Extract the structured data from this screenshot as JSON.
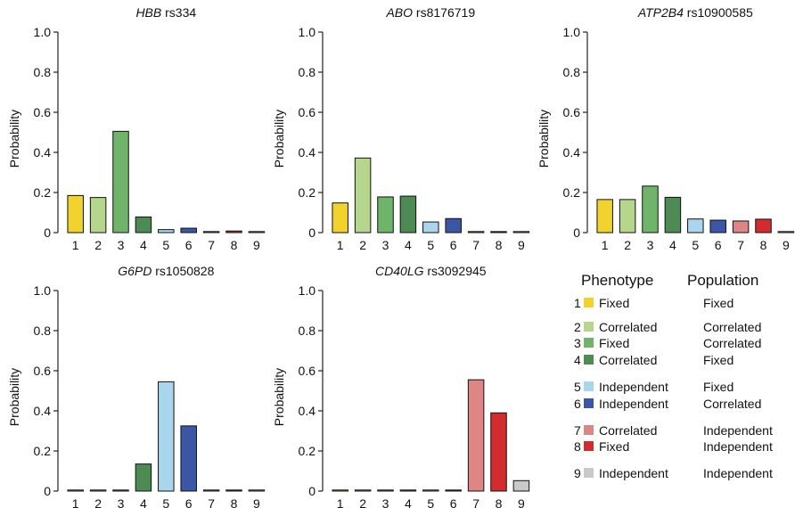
{
  "chart_data": [
    {
      "type": "bar",
      "title_gene": "HBB",
      "title_snp": "rs334",
      "ylabel": "Probability",
      "ylim": [
        0,
        1
      ],
      "yticks": [
        "0",
        "0.2",
        "0.4",
        "0.6",
        "0.8",
        "1.0"
      ],
      "categories": [
        "1",
        "2",
        "3",
        "4",
        "5",
        "6",
        "7",
        "8",
        "9"
      ],
      "values": [
        0.185,
        0.175,
        0.505,
        0.078,
        0.015,
        0.022,
        0.004,
        0.008,
        0.002
      ]
    },
    {
      "type": "bar",
      "title_gene": "ABO",
      "title_snp": "rs8176719",
      "ylabel": "Probability",
      "ylim": [
        0,
        1
      ],
      "yticks": [
        "0",
        "0.2",
        "0.4",
        "0.6",
        "0.8",
        "1.0"
      ],
      "categories": [
        "1",
        "2",
        "3",
        "4",
        "5",
        "6",
        "7",
        "8",
        "9"
      ],
      "values": [
        0.148,
        0.372,
        0.178,
        0.182,
        0.053,
        0.07,
        0.002,
        0.002,
        0.002
      ]
    },
    {
      "type": "bar",
      "title_gene": "ATP2B4",
      "title_snp": "rs10900585",
      "ylabel": "Probability",
      "ylim": [
        0,
        1
      ],
      "yticks": [
        "0",
        "0.2",
        "0.4",
        "0.6",
        "0.8",
        "1.0"
      ],
      "categories": [
        "1",
        "2",
        "3",
        "4",
        "5",
        "6",
        "7",
        "8",
        "9"
      ],
      "values": [
        0.165,
        0.165,
        0.232,
        0.176,
        0.068,
        0.062,
        0.058,
        0.067,
        0.002
      ]
    },
    {
      "type": "bar",
      "title_gene": "G6PD",
      "title_snp": "rs1050828",
      "ylabel": "Probability",
      "ylim": [
        0,
        1
      ],
      "yticks": [
        "0",
        "0.2",
        "0.4",
        "0.6",
        "0.8",
        "1.0"
      ],
      "categories": [
        "1",
        "2",
        "3",
        "4",
        "5",
        "6",
        "7",
        "8",
        "9"
      ],
      "values": [
        0.002,
        0.002,
        0.002,
        0.135,
        0.545,
        0.325,
        0.002,
        0.002,
        0.002
      ]
    },
    {
      "type": "bar",
      "title_gene": "CD40LG",
      "title_snp": "rs3092945",
      "ylabel": "Probability",
      "ylim": [
        0,
        1
      ],
      "yticks": [
        "0",
        "0.2",
        "0.4",
        "0.6",
        "0.8",
        "1.0"
      ],
      "categories": [
        "1",
        "2",
        "3",
        "4",
        "5",
        "6",
        "7",
        "8",
        "9"
      ],
      "values": [
        0.002,
        0.002,
        0.002,
        0.002,
        0.002,
        0.002,
        0.555,
        0.39,
        0.052
      ]
    }
  ],
  "category_colors": [
    "#f2d22c",
    "#b5d68c",
    "#6fb469",
    "#4e8b54",
    "#a9d5ed",
    "#3c56a6",
    "#de8686",
    "#d32c2d",
    "#c9c9c9"
  ],
  "legend": {
    "phenotype_header": "Phenotype",
    "population_header": "Population",
    "entries": [
      {
        "num": "1",
        "phenotype": "Fixed",
        "population": "Fixed"
      },
      {
        "num": "2",
        "phenotype": "Correlated",
        "population": "Correlated"
      },
      {
        "num": "3",
        "phenotype": "Fixed",
        "population": "Correlated"
      },
      {
        "num": "4",
        "phenotype": "Correlated",
        "population": "Fixed"
      },
      {
        "num": "5",
        "phenotype": "Independent",
        "population": "Fixed"
      },
      {
        "num": "6",
        "phenotype": "Independent",
        "population": "Correlated"
      },
      {
        "num": "7",
        "phenotype": "Correlated",
        "population": "Independent"
      },
      {
        "num": "8",
        "phenotype": "Fixed",
        "population": "Independent"
      },
      {
        "num": "9",
        "phenotype": "Independent",
        "population": "Independent"
      }
    ]
  }
}
